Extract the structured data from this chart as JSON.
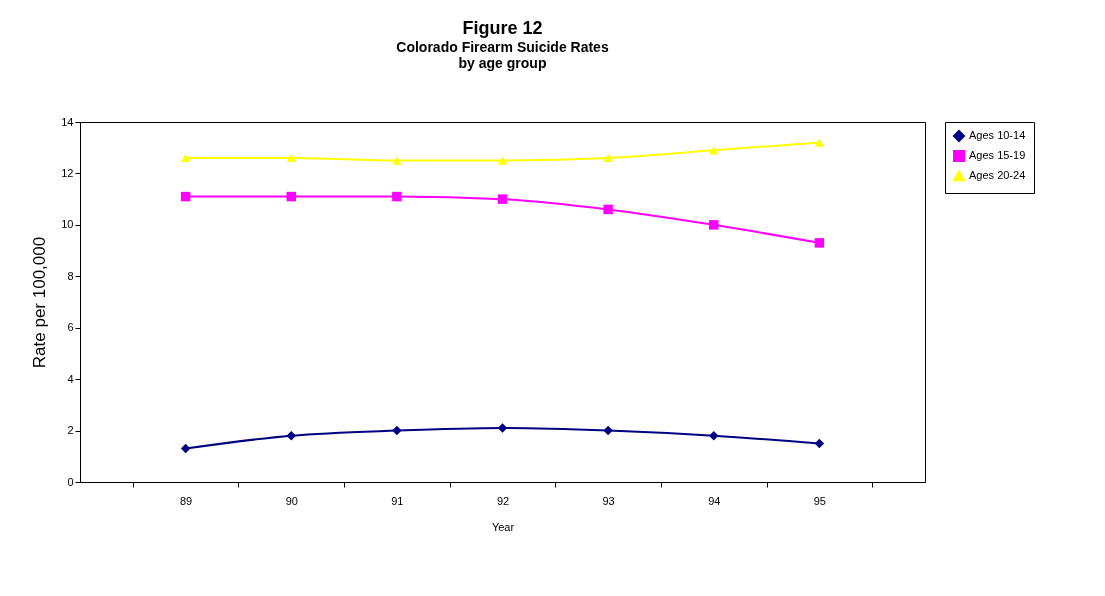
{
  "chart_data": {
    "type": "line",
    "title": "Figure 12",
    "subtitle": "Colorado Firearm Suicide Rates\nby age group",
    "xlabel": "Year",
    "ylabel": "Rate per 100,000",
    "categories": [
      "89",
      "90",
      "91",
      "92",
      "93",
      "94",
      "95"
    ],
    "series": [
      {
        "name": "Ages 10-14",
        "color": "#000080",
        "marker": "diamond",
        "values": [
          1.3,
          1.8,
          2.0,
          2.1,
          2.0,
          1.8,
          1.5
        ]
      },
      {
        "name": "Ages 15-19",
        "color": "#ff00ff",
        "marker": "square",
        "values": [
          11.1,
          11.1,
          11.1,
          11.0,
          10.6,
          10.0,
          9.3
        ]
      },
      {
        "name": "Ages 20-24",
        "color": "#ffff00",
        "marker": "triangle",
        "values": [
          12.6,
          12.6,
          12.5,
          12.5,
          12.6,
          12.9,
          13.2
        ]
      }
    ],
    "ylim": [
      0,
      14
    ],
    "yticks": [
      0,
      2,
      4,
      6,
      8,
      10,
      12,
      14
    ],
    "grid": false,
    "legend": "right",
    "line_style": "solid"
  }
}
